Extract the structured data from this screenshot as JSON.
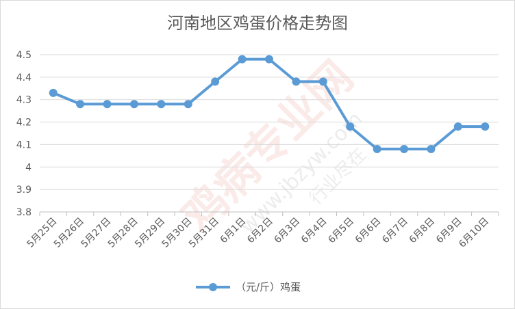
{
  "chart_data": {
    "type": "line",
    "title": "河南地区鸡蛋价格走势图",
    "categories": [
      "5月25日",
      "5月26日",
      "5月27日",
      "5月28日",
      "5月29日",
      "5月30日",
      "5月31日",
      "6月1日",
      "6月2日",
      "6月3日",
      "6月4日",
      "6月5日",
      "6月6日",
      "6月7日",
      "6月8日",
      "6月9日",
      "6月10日"
    ],
    "series": [
      {
        "name": "（元/斤）鸡蛋",
        "values": [
          4.33,
          4.28,
          4.28,
          4.28,
          4.28,
          4.28,
          4.38,
          4.48,
          4.48,
          4.38,
          4.38,
          4.18,
          4.08,
          4.08,
          4.08,
          4.18,
          4.18
        ]
      }
    ],
    "ylim": [
      3.8,
      4.5
    ],
    "yticks": [
      "3.8",
      "3.9",
      "4",
      "4.1",
      "4.2",
      "4.3",
      "4.4",
      "4.5"
    ],
    "grid": true,
    "legend_position": "bottom",
    "colors": {
      "series": "#5b9bd5",
      "grid": "#d9d9d9",
      "axis": "#bfbfbf",
      "text": "#595959"
    }
  },
  "watermark": {
    "brand": "鸡病专业网",
    "url": "www.jbzyw.com",
    "slogan": "行业尽在"
  }
}
